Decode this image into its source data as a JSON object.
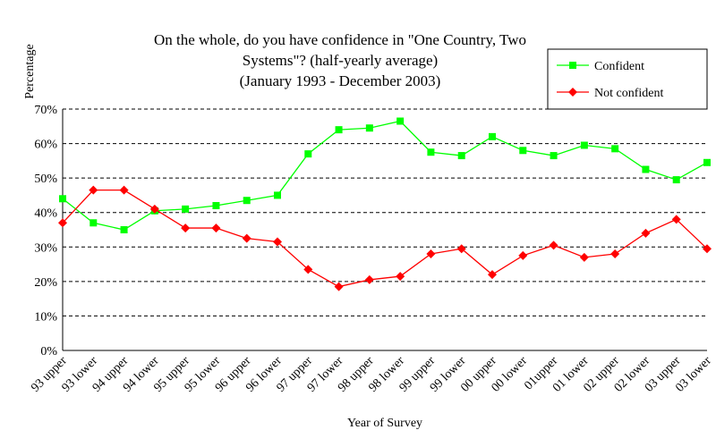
{
  "chart_data": {
    "type": "line",
    "title_lines": [
      "On the whole, do you have confidence in \"One Country, Two",
      "Systems\"? (half-yearly average)",
      "(January 1993 - December 2003)"
    ],
    "xlabel": "Year of Survey",
    "ylabel": "Percentage",
    "ylim": [
      0,
      70
    ],
    "yticks": [
      "0%",
      "10%",
      "20%",
      "30%",
      "40%",
      "50%",
      "60%",
      "70%"
    ],
    "grid": "horizontal dashed",
    "legend_position": "top-right",
    "categories": [
      "93 upper",
      "93 lower",
      "94 upper",
      "94 lower",
      "95 upper",
      "95 lower",
      "96 upper",
      "96 lower",
      "97 upper",
      "97 lower",
      "98 upper",
      "98 lower",
      "99 upper",
      "99 lower",
      "00 upper",
      "00 lower",
      "01upper",
      "01 lower",
      "02 upper",
      "02 lower",
      "03 upper",
      "03 lower"
    ],
    "series": [
      {
        "name": "Confident",
        "color": "#00ff00",
        "marker": "square",
        "values": [
          44,
          37,
          35,
          40.5,
          41,
          42,
          43.5,
          45,
          57,
          64,
          64.5,
          66.5,
          57.5,
          56.5,
          62,
          58,
          56.5,
          59.5,
          58.5,
          52.5,
          49.5,
          54.5
        ]
      },
      {
        "name": "Not confident",
        "color": "#ff0000",
        "marker": "diamond",
        "values": [
          37,
          46.5,
          46.5,
          41,
          35.5,
          35.5,
          32.5,
          31.5,
          23.5,
          18.5,
          20.5,
          21.5,
          28,
          29.5,
          22,
          27.5,
          30.5,
          27,
          28,
          34,
          38,
          29.5
        ]
      }
    ]
  }
}
